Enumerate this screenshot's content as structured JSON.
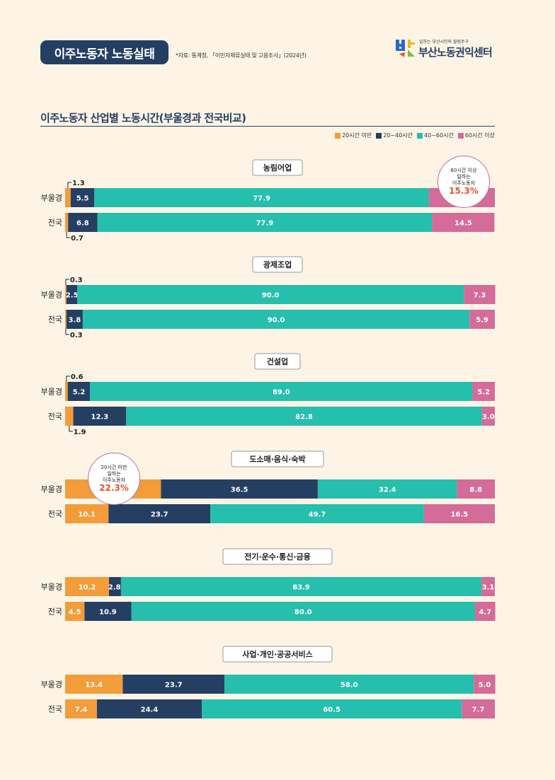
{
  "header": {
    "badge": "이주노동자 노동실태",
    "source": "*자료: 통계청, 「이민자체류실태 및 고용조사」(2024년)",
    "logo_tagline": "일하는 부산시민의 힐링주구",
    "logo_name": "부산노동권익센터"
  },
  "chart_title": "이주노동자 산업별 노동시간(부울경과 전국비교)",
  "callouts": [
    {
      "text": "60시간 이상\n일하는\n이주노동자",
      "value": "15.3%"
    },
    {
      "text": "20시간 미만\n일하는\n이주노동자",
      "value": "22.3%"
    }
  ],
  "colors": {
    "under20": "#f39c3a",
    "h20to40": "#253f63",
    "h40to60": "#26bead",
    "over60": "#d46b98",
    "navy": "#253f63"
  },
  "chart_data": {
    "type": "bar",
    "orientation": "horizontal",
    "stacked": true,
    "unit": "%",
    "legend": [
      "20시간 미만",
      "20~40시간",
      "40~60시간",
      "60시간 이상"
    ],
    "legend_position": "top-right",
    "groups": [
      {
        "name": "농림어업",
        "rows": [
          {
            "label": "부울경",
            "values": [
              1.3,
              5.5,
              77.9,
              15.3
            ],
            "labels": [
              "1.3",
              "5.5",
              "77.9",
              ""
            ]
          },
          {
            "label": "전국",
            "values": [
              0.7,
              6.8,
              77.9,
              14.5
            ],
            "labels": [
              "0.7",
              "6.8",
              "77.9",
              "14.5"
            ]
          }
        ]
      },
      {
        "name": "광제조업",
        "rows": [
          {
            "label": "부울경",
            "values": [
              0.3,
              2.5,
              90.0,
              7.3
            ],
            "labels": [
              "0.3",
              "2.5",
              "90.0",
              "7.3"
            ]
          },
          {
            "label": "전국",
            "values": [
              0.3,
              3.8,
              90.0,
              5.9
            ],
            "labels": [
              "0.3",
              "3.8",
              "90.0",
              "5.9"
            ]
          }
        ]
      },
      {
        "name": "건설업",
        "rows": [
          {
            "label": "부울경",
            "values": [
              0.6,
              5.2,
              89.0,
              5.2
            ],
            "labels": [
              "0.6",
              "5.2",
              "89.0",
              "5.2"
            ]
          },
          {
            "label": "전국",
            "values": [
              1.9,
              12.3,
              82.8,
              3.0
            ],
            "labels": [
              "1.9",
              "12.3",
              "82.8",
              "3.0"
            ]
          }
        ]
      },
      {
        "name": "도소매·음식·숙박",
        "rows": [
          {
            "label": "부울경",
            "values": [
              22.3,
              36.5,
              32.4,
              8.8
            ],
            "labels": [
              "",
              "36.5",
              "32.4",
              "8.8"
            ]
          },
          {
            "label": "전국",
            "values": [
              10.1,
              23.7,
              49.7,
              16.5
            ],
            "labels": [
              "10.1",
              "23.7",
              "49.7",
              "16.5"
            ]
          }
        ]
      },
      {
        "name": "전기·운수·통신·금융",
        "rows": [
          {
            "label": "부울경",
            "values": [
              10.2,
              2.8,
              83.9,
              3.1
            ],
            "labels": [
              "10.2",
              "2.8",
              "83.9",
              "3.1"
            ]
          },
          {
            "label": "전국",
            "values": [
              4.5,
              10.9,
              80.0,
              4.7
            ],
            "labels": [
              "4.5",
              "10.9",
              "80.0",
              "4.7"
            ]
          }
        ]
      },
      {
        "name": "사업·개인·공공서비스",
        "rows": [
          {
            "label": "부울경",
            "values": [
              13.4,
              23.7,
              58.0,
              5.0
            ],
            "labels": [
              "13.4",
              "23.7",
              "58.0",
              "5.0"
            ]
          },
          {
            "label": "전국",
            "values": [
              7.4,
              24.4,
              60.5,
              7.7
            ],
            "labels": [
              "7.4",
              "24.4",
              "60.5",
              "7.7"
            ]
          }
        ]
      }
    ]
  }
}
